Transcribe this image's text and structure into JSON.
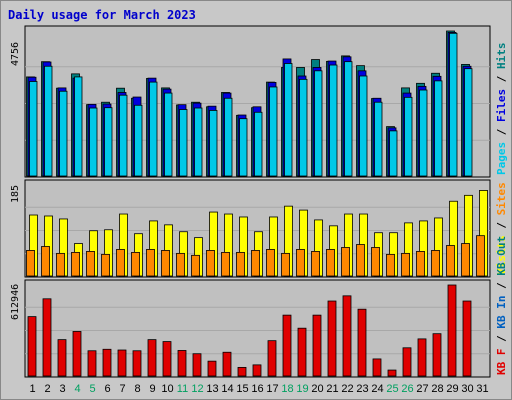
{
  "title": "Daily usage for March 2023",
  "chart_data": [
    {
      "type": "bar",
      "panel": "top",
      "max_label": "4756",
      "legend": [
        {
          "text": "Pages",
          "color": "#00c8e8"
        },
        {
          "text": "Files",
          "color": "#0000e0"
        },
        {
          "text": "Hits",
          "color": "#008080"
        }
      ],
      "ylim": [
        0,
        4756
      ],
      "categories": [
        "1",
        "2",
        "3",
        "4",
        "5",
        "6",
        "7",
        "8",
        "9",
        "10",
        "11",
        "12",
        "13",
        "14",
        "15",
        "16",
        "17",
        "18",
        "19",
        "20",
        "21",
        "22",
        "23",
        "24",
        "25",
        "26",
        "27",
        "28",
        "29",
        "30",
        "31"
      ],
      "weekend_days": [
        "4",
        "5",
        "11",
        "12",
        "18",
        "19",
        "25",
        "26"
      ],
      "series": [
        {
          "name": "Hits",
          "color": "#008080",
          "values": [
            3250,
            3750,
            2880,
            3350,
            2340,
            2420,
            2880,
            2550,
            3200,
            2890,
            2330,
            2420,
            2270,
            2740,
            1990,
            2240,
            3080,
            3560,
            3560,
            3820,
            3760,
            3940,
            3620,
            2540,
            1620,
            2890,
            3040,
            3370,
            4756,
            3660,
            0
          ]
        },
        {
          "name": "Files",
          "color": "#0000e0",
          "values": [
            3240,
            3740,
            2890,
            3210,
            2350,
            2360,
            2740,
            2590,
            3210,
            2850,
            2340,
            2390,
            2290,
            2720,
            2000,
            2270,
            3070,
            3840,
            3280,
            3560,
            3770,
            3910,
            3450,
            2550,
            1580,
            2720,
            2940,
            3270,
            4710,
            3600,
            0
          ]
        },
        {
          "name": "Pages",
          "color": "#00c8e8",
          "values": [
            3100,
            3600,
            2780,
            3250,
            2230,
            2240,
            2650,
            2320,
            3080,
            2720,
            2180,
            2230,
            2150,
            2550,
            1880,
            2090,
            2920,
            3690,
            3170,
            3450,
            3640,
            3750,
            3280,
            2420,
            1480,
            2580,
            2820,
            3120,
            4680,
            3520,
            0
          ]
        }
      ]
    },
    {
      "type": "bar",
      "panel": "middle",
      "max_label": "185",
      "legend": [
        {
          "text": "Visits",
          "color": "#ffff00"
        },
        {
          "text": "Sites",
          "color": "#ff8800"
        }
      ],
      "ylim": [
        0,
        185
      ],
      "series": [
        {
          "name": "Visits",
          "color": "#ffff00",
          "values": [
            124,
            122,
            116,
            66,
            92,
            94,
            126,
            86,
            112,
            104,
            90,
            78,
            130,
            126,
            120,
            90,
            120,
            142,
            134,
            114,
            102,
            126,
            126,
            88,
            88,
            108,
            112,
            118,
            152,
            164,
            174
          ]
        },
        {
          "name": "Sites",
          "color": "#ff8800",
          "values": [
            52,
            60,
            46,
            48,
            50,
            44,
            54,
            48,
            54,
            52,
            46,
            42,
            52,
            48,
            48,
            52,
            54,
            46,
            54,
            50,
            54,
            58,
            64,
            58,
            44,
            46,
            50,
            52,
            62,
            66,
            82
          ]
        }
      ]
    },
    {
      "type": "bar",
      "panel": "bottom",
      "max_label": "612946",
      "legend": [
        {
          "text": "KB F",
          "color": "#e00000"
        },
        {
          "text": "KB In",
          "color": "#0060c0"
        },
        {
          "text": "KB Out",
          "color": "#008080"
        }
      ],
      "ylim": [
        0,
        612946
      ],
      "series": [
        {
          "name": "KB F",
          "color": "#e00000",
          "values": [
            400000,
            520000,
            245000,
            300000,
            170000,
            180000,
            175000,
            170000,
            245000,
            232000,
            172000,
            150000,
            100000,
            160000,
            58000,
            75000,
            238000,
            410000,
            322000,
            410000,
            505000,
            540000,
            450000,
            115000,
            40000,
            190000,
            250000,
            285000,
            612946,
            505000,
            0
          ]
        }
      ]
    }
  ]
}
